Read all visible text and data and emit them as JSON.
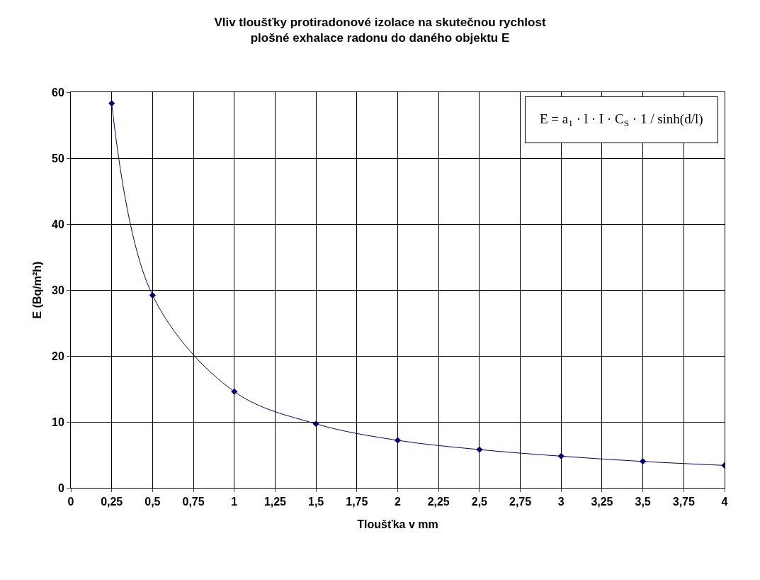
{
  "chart_data": {
    "type": "line",
    "title": "Vliv tloušťky protiradonové izolace na skutečnou rychlost plošné exhalace radonu do daného objektu E",
    "xlabel": "Tloušťka v mm",
    "ylabel": "E (Bq/m²h)",
    "x": [
      0.25,
      0.5,
      1,
      1.5,
      2,
      2.5,
      3,
      3.5,
      4
    ],
    "series": [
      {
        "color": "#000080",
        "values": [
          58.3,
          29.2,
          14.6,
          9.7,
          7.2,
          5.8,
          4.8,
          4.0,
          3.4
        ]
      }
    ],
    "marker": "diamond",
    "line_style": "solid",
    "grid": true,
    "xlim": [
      0,
      4
    ],
    "xticks": [
      0,
      {
        "value": 0.25,
        "label": "0,25"
      },
      {
        "value": 0.5,
        "label": "0,5"
      },
      {
        "value": 0.75,
        "label": "0,75"
      },
      1,
      {
        "value": 1.25,
        "label": "1,25"
      },
      {
        "value": 1.5,
        "label": "1,5"
      },
      {
        "value": 1.75,
        "label": "1,75"
      },
      2,
      {
        "value": 2.25,
        "label": "2,25"
      },
      {
        "value": 2.5,
        "label": "2,5"
      },
      {
        "value": 2.75,
        "label": "2,75"
      },
      3,
      {
        "value": 3.25,
        "label": "3,25"
      },
      {
        "value": 3.5,
        "label": "3,5"
      },
      {
        "value": 3.75,
        "label": "3,75"
      },
      4
    ],
    "ylim": [
      0,
      60
    ],
    "yticks": [
      0,
      10,
      20,
      30,
      40,
      50,
      60
    ],
    "annotations": [
      "E = a$_{1}$ · l · I · C$_{S}$ · 1 / sinh(d/l)"
    ]
  }
}
